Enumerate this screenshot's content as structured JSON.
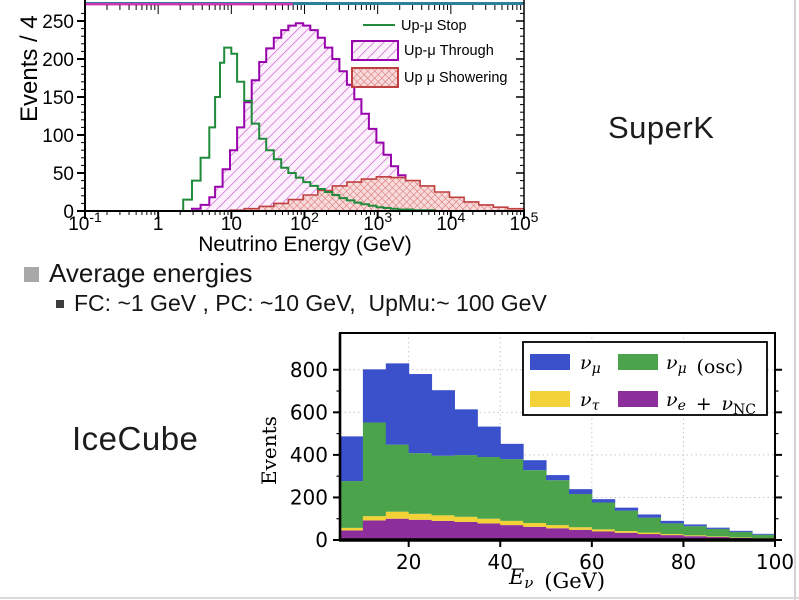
{
  "slide": {
    "superk_label": "SuperK",
    "icecube_label": "IceCube",
    "bullets": {
      "main": "Average energies",
      "sub": "FC: ~1 GeV , PC: ~10 GeV,  UpMu:~ 100 GeV"
    }
  },
  "chart_data": [
    {
      "id": "superk",
      "type": "step-histogram",
      "xscale": "log",
      "xlabel": "Neutrino Energy (GeV)",
      "ylabel": "Events / 4",
      "xlim": [
        0.1,
        100000
      ],
      "ylim": [
        0,
        265
      ],
      "xticks": [
        0.1,
        1,
        10,
        100,
        1000,
        10000,
        100000
      ],
      "xtick_labels": [
        [
          "10",
          "-1"
        ],
        [
          "1",
          ""
        ],
        [
          "10",
          ""
        ],
        [
          "10",
          "2"
        ],
        [
          "10",
          "3"
        ],
        [
          "10",
          "4"
        ],
        [
          "10",
          "5"
        ]
      ],
      "yticks": [
        0,
        50,
        100,
        150,
        200,
        250
      ],
      "grid": "off",
      "legend_position": "top-right-inside",
      "colors": {
        "stop_line": "#1f8b3b",
        "through_outline": "#9903ad",
        "through_hatch": "#cc55cc",
        "through_fill": "#fbf0fb",
        "showering_outline": "#bf4040",
        "showering_hatch": "#d96a6a",
        "showering_fill": "#f7dada",
        "top_band_teal": "#2d7f9d",
        "top_band_magenta": "#d233b5"
      },
      "legend": [
        {
          "label": "Up-μ Stop",
          "style": "line"
        },
        {
          "label": "Up-μ Through",
          "style": "hatch-diagonal"
        },
        {
          "label": "Up μ Showering",
          "style": "hatch-cross"
        }
      ],
      "series": [
        {
          "name": "Up-μ Stop",
          "points": [
            [
              1.7,
              0
            ],
            [
              2.2,
              15
            ],
            [
              2.9,
              40
            ],
            [
              3.8,
              70
            ],
            [
              5.0,
              110
            ],
            [
              6.0,
              150
            ],
            [
              7.0,
              195
            ],
            [
              8.0,
              215
            ],
            [
              10,
              207
            ],
            [
              12,
              170
            ],
            [
              15,
              145
            ],
            [
              19,
              115
            ],
            [
              24,
              95
            ],
            [
              30,
              80
            ],
            [
              38,
              68
            ],
            [
              48,
              57
            ],
            [
              60,
              50
            ],
            [
              76,
              44
            ],
            [
              96,
              38
            ],
            [
              120,
              33
            ],
            [
              152,
              29
            ],
            [
              190,
              25
            ],
            [
              240,
              21
            ],
            [
              300,
              17
            ],
            [
              380,
              14
            ],
            [
              480,
              11
            ],
            [
              600,
              9
            ],
            [
              760,
              7
            ],
            [
              960,
              5
            ],
            [
              1200,
              4
            ],
            [
              1500,
              3
            ],
            [
              1900,
              2
            ],
            [
              3000,
              1
            ],
            [
              4800,
              1
            ],
            [
              6000,
              0
            ]
          ]
        },
        {
          "name": "Up-μ Through",
          "points": [
            [
              2.2,
              0
            ],
            [
              2.9,
              3
            ],
            [
              3.8,
              8
            ],
            [
              5.0,
              18
            ],
            [
              6.0,
              32
            ],
            [
              7.6,
              55
            ],
            [
              9.6,
              80
            ],
            [
              12,
              110
            ],
            [
              15,
              143
            ],
            [
              19,
              172
            ],
            [
              24,
              196
            ],
            [
              30,
              214
            ],
            [
              38,
              228
            ],
            [
              48,
              238
            ],
            [
              60,
              244
            ],
            [
              76,
              247
            ],
            [
              96,
              244
            ],
            [
              120,
              238
            ],
            [
              152,
              228
            ],
            [
              190,
              215
            ],
            [
              240,
              200
            ],
            [
              300,
              184
            ],
            [
              380,
              166
            ],
            [
              480,
              147
            ],
            [
              600,
              128
            ],
            [
              760,
              108
            ],
            [
              960,
              90
            ],
            [
              1200,
              74
            ],
            [
              1520,
              59
            ],
            [
              1900,
              47
            ],
            [
              2400,
              37
            ],
            [
              3000,
              28
            ],
            [
              3800,
              21
            ],
            [
              4800,
              16
            ],
            [
              6000,
              12
            ],
            [
              7600,
              9
            ],
            [
              9600,
              6
            ],
            [
              12000,
              4
            ],
            [
              15200,
              3
            ],
            [
              19000,
              2
            ],
            [
              24000,
              1
            ],
            [
              38000,
              1
            ],
            [
              48000,
              0
            ]
          ]
        },
        {
          "name": "Up μ Showering",
          "points": [
            [
              9.6,
              1
            ],
            [
              15,
              3
            ],
            [
              24,
              6
            ],
            [
              38,
              10
            ],
            [
              60,
              15
            ],
            [
              96,
              21
            ],
            [
              152,
              27
            ],
            [
              240,
              33
            ],
            [
              380,
              38
            ],
            [
              600,
              42
            ],
            [
              960,
              45
            ],
            [
              1520,
              44
            ],
            [
              2400,
              40
            ],
            [
              3800,
              33
            ],
            [
              6000,
              25
            ],
            [
              9600,
              18
            ],
            [
              15200,
              12
            ],
            [
              24000,
              8
            ],
            [
              38000,
              5
            ],
            [
              60000,
              3
            ],
            [
              100000,
              2
            ]
          ]
        }
      ]
    },
    {
      "id": "icecube",
      "type": "stacked-bar-histogram",
      "xlabel": "E_ν (GeV)",
      "ylabel": "Events",
      "xlim": [
        5,
        100
      ],
      "ylim": [
        0,
        950
      ],
      "bin_width": 5,
      "bin_starts": [
        5,
        10,
        15,
        20,
        25,
        30,
        35,
        40,
        45,
        50,
        55,
        60,
        65,
        70,
        75,
        80,
        85,
        90,
        95
      ],
      "xticks": [
        20,
        40,
        60,
        80,
        100
      ],
      "yticks": [
        0,
        200,
        400,
        600,
        800
      ],
      "ytick_minor_step": 100,
      "grid": "dotted",
      "legend_position": "top-right-inside",
      "series": [
        {
          "name": "ν_e + ν_NC",
          "color": "#8c2f9c",
          "values": [
            45,
            92,
            100,
            95,
            90,
            85,
            78,
            70,
            62,
            55,
            48,
            40,
            34,
            28,
            23,
            18,
            14,
            10,
            7
          ]
        },
        {
          "name": "ν_τ",
          "color": "#f2d236",
          "values": [
            12,
            20,
            33,
            28,
            26,
            24,
            22,
            20,
            18,
            15,
            12,
            10,
            8,
            7,
            5,
            4,
            3,
            2,
            2
          ]
        },
        {
          "name": "ν_μ (osc)",
          "color": "#4ba34b",
          "values": [
            220,
            440,
            315,
            285,
            280,
            290,
            290,
            290,
            248,
            211,
            156,
            126,
            96,
            70,
            50,
            43,
            35,
            26,
            16
          ]
        },
        {
          "name": "ν_μ",
          "color": "#3b51cc",
          "values": [
            210,
            250,
            382,
            372,
            308,
            215,
            143,
            72,
            47,
            24,
            23,
            16,
            14,
            15,
            12,
            8,
            6,
            5,
            4
          ]
        }
      ],
      "legend_order": [
        "ν_μ",
        "ν_μ (osc)",
        "ν_τ",
        "ν_e + ν_NC"
      ]
    }
  ]
}
